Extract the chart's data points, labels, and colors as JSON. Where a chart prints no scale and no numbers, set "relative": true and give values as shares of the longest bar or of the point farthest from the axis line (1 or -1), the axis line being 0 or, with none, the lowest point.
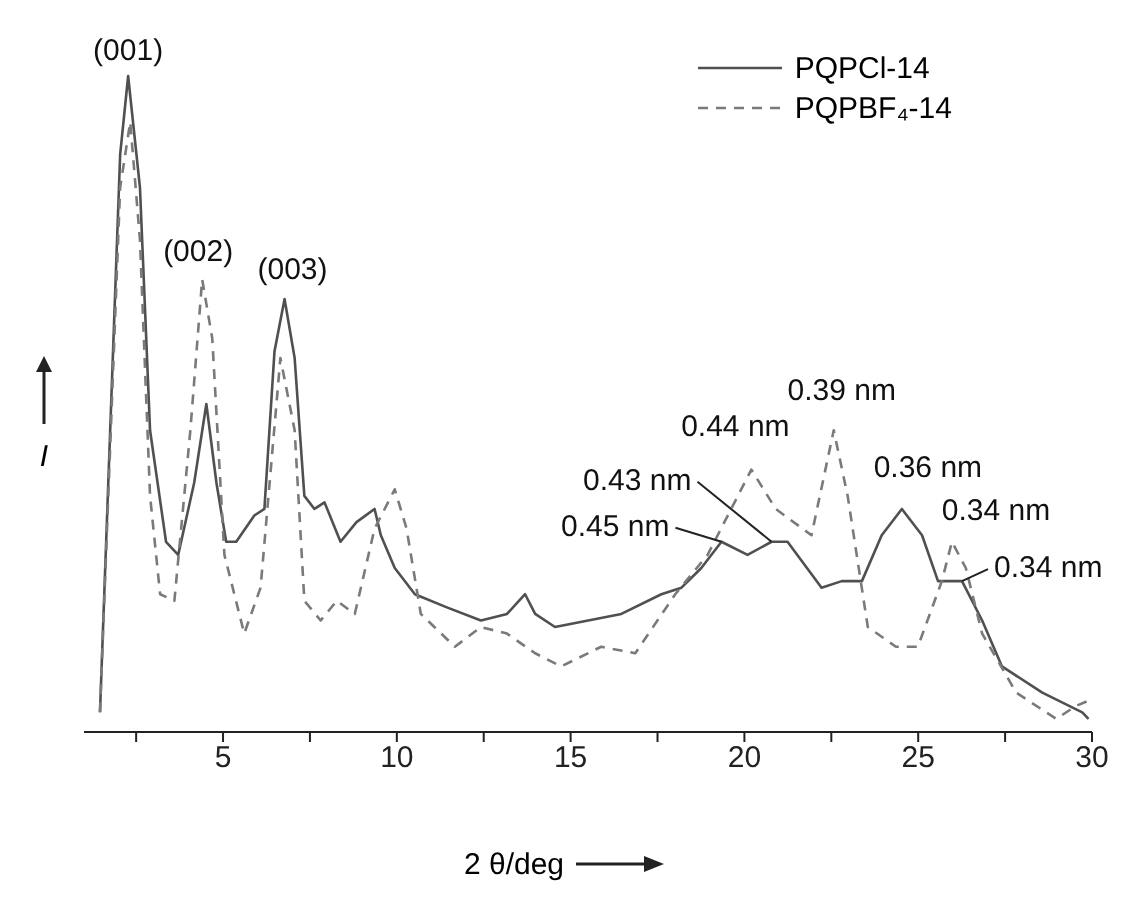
{
  "chart_data": {
    "type": "line",
    "relative": true,
    "xlabel": "2 θ/deg",
    "ylabel": "I",
    "xlim": [
      1,
      30
    ],
    "xticks": [
      {
        "value": 2.5,
        "label": null
      },
      5,
      {
        "value": 7.5,
        "label": null
      },
      10,
      {
        "value": 12.5,
        "label": null
      },
      15,
      {
        "value": 17.5,
        "label": null
      },
      20,
      {
        "value": 22.5,
        "label": null
      },
      25,
      {
        "value": 27.5,
        "label": null
      },
      30
    ],
    "legend": "top right",
    "marker": "none",
    "series": [
      {
        "name": "PQPCl-14",
        "color": "#505050",
        "line_style": "solid",
        "x": [
          1.46,
          2.04,
          2.27,
          2.61,
          2.9,
          3.36,
          3.71,
          4.17,
          4.52,
          4.81,
          5.09,
          5.38,
          5.9,
          6.19,
          6.48,
          6.77,
          7.06,
          7.34,
          7.63,
          7.92,
          8.38,
          8.84,
          9.36,
          9.54,
          9.94,
          10.52,
          11.44,
          12.42,
          13.17,
          13.69,
          13.98,
          14.55,
          16.46,
          17.61,
          18.19,
          18.76,
          19.34,
          20.09,
          20.78,
          21.24,
          22.22,
          22.8,
          23.38,
          23.95,
          24.53,
          25.11,
          25.57,
          26.26,
          26.84,
          27.41,
          28.57,
          29.72,
          29.9
        ],
        "values": [
          0.03,
          0.88,
          1.0,
          0.83,
          0.46,
          0.29,
          0.27,
          0.38,
          0.5,
          0.38,
          0.29,
          0.29,
          0.33,
          0.34,
          0.58,
          0.66,
          0.57,
          0.36,
          0.34,
          0.35,
          0.29,
          0.32,
          0.34,
          0.3,
          0.25,
          0.21,
          0.19,
          0.17,
          0.18,
          0.21,
          0.18,
          0.16,
          0.18,
          0.21,
          0.22,
          0.25,
          0.29,
          0.27,
          0.29,
          0.29,
          0.22,
          0.23,
          0.23,
          0.3,
          0.34,
          0.3,
          0.23,
          0.23,
          0.17,
          0.1,
          0.06,
          0.03,
          0.02
        ]
      },
      {
        "name": "PQPBF₄-14",
        "color": "#7a7a7a",
        "line_style": "dashed",
        "x": [
          1.46,
          2.04,
          2.33,
          2.61,
          2.9,
          3.19,
          3.6,
          4.06,
          4.4,
          4.69,
          5.04,
          5.61,
          6.08,
          6.65,
          7.06,
          7.34,
          7.81,
          8.27,
          8.79,
          9.36,
          9.94,
          10.28,
          10.69,
          11.67,
          12.42,
          13.17,
          13.98,
          14.73,
          15.88,
          16.86,
          18.01,
          18.94,
          20.2,
          20.9,
          21.93,
          22.57,
          22.97,
          23.55,
          24.36,
          24.99,
          25.68,
          25.97,
          26.37,
          26.84,
          27.82,
          28.97,
          29.55,
          30.0
        ],
        "values": [
          0.03,
          0.83,
          0.93,
          0.75,
          0.36,
          0.21,
          0.2,
          0.46,
          0.69,
          0.6,
          0.27,
          0.15,
          0.22,
          0.57,
          0.46,
          0.2,
          0.17,
          0.2,
          0.18,
          0.31,
          0.37,
          0.31,
          0.18,
          0.13,
          0.16,
          0.15,
          0.12,
          0.1,
          0.13,
          0.12,
          0.21,
          0.27,
          0.4,
          0.34,
          0.3,
          0.46,
          0.36,
          0.16,
          0.13,
          0.13,
          0.23,
          0.29,
          0.25,
          0.15,
          0.06,
          0.02,
          0.04,
          0.05
        ]
      }
    ],
    "annotations": [
      {
        "text": "(001)",
        "x": 2.27,
        "y": 1.0
      },
      {
        "text": "(002)",
        "x": 4.4,
        "y": 0.69
      },
      {
        "text": "(003)",
        "x": 6.77,
        "y": 0.66
      },
      {
        "text": "0.45 nm",
        "x": 19.34,
        "y": 0.29
      },
      {
        "text": "0.43 nm",
        "x": 20.78,
        "y": 0.29
      },
      {
        "text": "0.44 nm",
        "x": 20.2,
        "y": 0.4
      },
      {
        "text": "0.39 nm",
        "x": 22.57,
        "y": 0.46
      },
      {
        "text": "0.36 nm",
        "x": 24.53,
        "y": 0.34
      },
      {
        "text": "0.34 nm",
        "x": 25.97,
        "y": 0.29
      },
      {
        "text": "0.34 nm",
        "x": 26.26,
        "y": 0.23
      }
    ]
  }
}
